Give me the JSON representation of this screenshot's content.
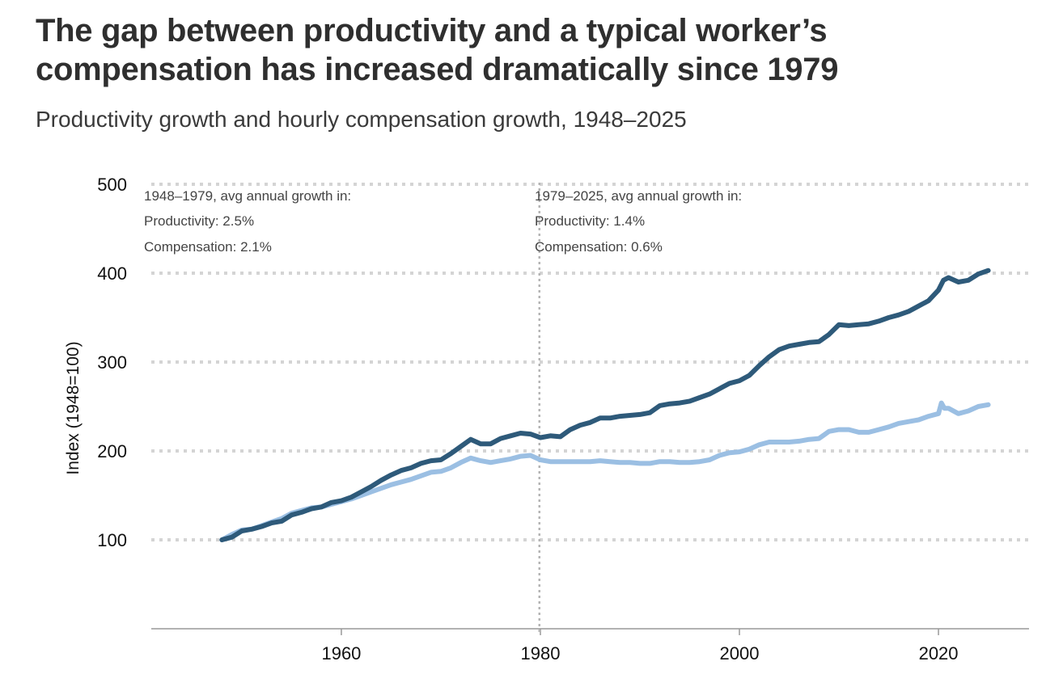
{
  "title": "The gap between productivity and a typical worker’s compensation has increased dramatically since 1979",
  "subtitle": "Productivity growth and hourly compensation growth, 1948–2025",
  "colors": {
    "productivity": "#2e5a7a",
    "compensation": "#9bbfe3",
    "grid": "#d4d4d4",
    "axis": "#999999"
  },
  "chart_data": {
    "type": "line",
    "ylabel": "Index (1948=100)",
    "xlim": [
      1940.9,
      2029.1
    ],
    "ylim": [
      0,
      500
    ],
    "xticks": [
      1960,
      1980,
      2000,
      2020
    ],
    "yticks": [
      100,
      200,
      300,
      400,
      500
    ],
    "grid": "horizontal dotted",
    "legend": "none",
    "divider_year": 1979.9,
    "annotations": {
      "left": {
        "heading": "1948–1979, avg annual growth in:",
        "productivity": "Productivity: 2.5%",
        "compensation": "Compensation: 2.1%"
      },
      "right": {
        "heading": "1979–2025, avg annual growth in:",
        "productivity": "Productivity: 1.4%",
        "compensation": "Compensation: 0.6%"
      }
    },
    "series": [
      {
        "key": "productivity",
        "points": [
          [
            1948.0,
            100
          ],
          [
            1949.0,
            103
          ],
          [
            1950.0,
            110
          ],
          [
            1951.0,
            112
          ],
          [
            1952.0,
            115
          ],
          [
            1953.0,
            119
          ],
          [
            1954.0,
            121
          ],
          [
            1955.0,
            128
          ],
          [
            1956.0,
            131
          ],
          [
            1957.0,
            135
          ],
          [
            1958.0,
            137
          ],
          [
            1959.0,
            142
          ],
          [
            1960.0,
            144
          ],
          [
            1961.0,
            148
          ],
          [
            1962.0,
            154
          ],
          [
            1963.0,
            160
          ],
          [
            1964.0,
            167
          ],
          [
            1965.0,
            173
          ],
          [
            1966.0,
            178
          ],
          [
            1967.0,
            181
          ],
          [
            1968.0,
            186
          ],
          [
            1969.0,
            189
          ],
          [
            1970.0,
            190
          ],
          [
            1971.0,
            197
          ],
          [
            1972.0,
            205
          ],
          [
            1973.0,
            213
          ],
          [
            1974.0,
            208
          ],
          [
            1975.0,
            208
          ],
          [
            1976.0,
            214
          ],
          [
            1977.0,
            217
          ],
          [
            1978.0,
            220
          ],
          [
            1979.0,
            219
          ],
          [
            1980.0,
            215
          ],
          [
            1981.0,
            217
          ],
          [
            1982.0,
            216
          ],
          [
            1983.0,
            224
          ],
          [
            1984.0,
            229
          ],
          [
            1985.0,
            232
          ],
          [
            1986.0,
            237
          ],
          [
            1987.0,
            237
          ],
          [
            1988.0,
            239
          ],
          [
            1989.0,
            240
          ],
          [
            1990.0,
            241
          ],
          [
            1991.0,
            243
          ],
          [
            1992.0,
            251
          ],
          [
            1993.0,
            253
          ],
          [
            1994.0,
            254
          ],
          [
            1995.0,
            256
          ],
          [
            1996.0,
            260
          ],
          [
            1997.0,
            264
          ],
          [
            1998.0,
            270
          ],
          [
            1999.0,
            276
          ],
          [
            2000.0,
            279
          ],
          [
            2001.0,
            285
          ],
          [
            2002.0,
            296
          ],
          [
            2003.0,
            306
          ],
          [
            2004.0,
            314
          ],
          [
            2005.0,
            318
          ],
          [
            2006.0,
            320
          ],
          [
            2007.0,
            322
          ],
          [
            2008.0,
            323
          ],
          [
            2009.0,
            331
          ],
          [
            2010.0,
            342
          ],
          [
            2011.0,
            341
          ],
          [
            2012.0,
            342
          ],
          [
            2013.0,
            343
          ],
          [
            2014.0,
            346
          ],
          [
            2015.0,
            350
          ],
          [
            2016.0,
            353
          ],
          [
            2017.0,
            357
          ],
          [
            2018.0,
            363
          ],
          [
            2019.0,
            369
          ],
          [
            2020.0,
            381
          ],
          [
            2020.5,
            392
          ],
          [
            2021.0,
            395
          ],
          [
            2022.0,
            390
          ],
          [
            2023.0,
            392
          ],
          [
            2024.0,
            399
          ],
          [
            2025.0,
            403
          ]
        ]
      },
      {
        "key": "compensation",
        "points": [
          [
            1948.0,
            100
          ],
          [
            1949.0,
            106
          ],
          [
            1950.0,
            111
          ],
          [
            1951.0,
            112
          ],
          [
            1952.0,
            116
          ],
          [
            1953.0,
            120
          ],
          [
            1954.0,
            124
          ],
          [
            1955.0,
            130
          ],
          [
            1956.0,
            133
          ],
          [
            1957.0,
            136
          ],
          [
            1958.0,
            137
          ],
          [
            1959.0,
            140
          ],
          [
            1960.0,
            143
          ],
          [
            1961.0,
            146
          ],
          [
            1962.0,
            150
          ],
          [
            1963.0,
            154
          ],
          [
            1964.0,
            158
          ],
          [
            1965.0,
            162
          ],
          [
            1966.0,
            165
          ],
          [
            1967.0,
            168
          ],
          [
            1968.0,
            172
          ],
          [
            1969.0,
            176
          ],
          [
            1970.0,
            177
          ],
          [
            1971.0,
            181
          ],
          [
            1972.0,
            187
          ],
          [
            1973.0,
            192
          ],
          [
            1974.0,
            189
          ],
          [
            1975.0,
            187
          ],
          [
            1976.0,
            189
          ],
          [
            1977.0,
            191
          ],
          [
            1978.0,
            194
          ],
          [
            1979.0,
            195
          ],
          [
            1980.0,
            190
          ],
          [
            1981.0,
            188
          ],
          [
            1982.0,
            188
          ],
          [
            1983.0,
            188
          ],
          [
            1984.0,
            188
          ],
          [
            1985.0,
            188
          ],
          [
            1986.0,
            189
          ],
          [
            1987.0,
            188
          ],
          [
            1988.0,
            187
          ],
          [
            1989.0,
            187
          ],
          [
            1990.0,
            186
          ],
          [
            1991.0,
            186
          ],
          [
            1992.0,
            188
          ],
          [
            1993.0,
            188
          ],
          [
            1994.0,
            187
          ],
          [
            1995.0,
            187
          ],
          [
            1996.0,
            188
          ],
          [
            1997.0,
            190
          ],
          [
            1998.0,
            195
          ],
          [
            1999.0,
            198
          ],
          [
            2000.0,
            199
          ],
          [
            2001.0,
            202
          ],
          [
            2002.0,
            207
          ],
          [
            2003.0,
            210
          ],
          [
            2004.0,
            210
          ],
          [
            2005.0,
            210
          ],
          [
            2006.0,
            211
          ],
          [
            2007.0,
            213
          ],
          [
            2008.0,
            214
          ],
          [
            2009.0,
            222
          ],
          [
            2010.0,
            224
          ],
          [
            2011.0,
            224
          ],
          [
            2012.0,
            221
          ],
          [
            2013.0,
            221
          ],
          [
            2014.0,
            224
          ],
          [
            2015.0,
            227
          ],
          [
            2016.0,
            231
          ],
          [
            2017.0,
            233
          ],
          [
            2018.0,
            235
          ],
          [
            2019.0,
            239
          ],
          [
            2020.0,
            242
          ],
          [
            2020.3,
            254
          ],
          [
            2020.6,
            248
          ],
          [
            2021.0,
            248
          ],
          [
            2022.0,
            242
          ],
          [
            2023.0,
            245
          ],
          [
            2024.0,
            250
          ],
          [
            2025.0,
            252
          ]
        ]
      }
    ]
  }
}
